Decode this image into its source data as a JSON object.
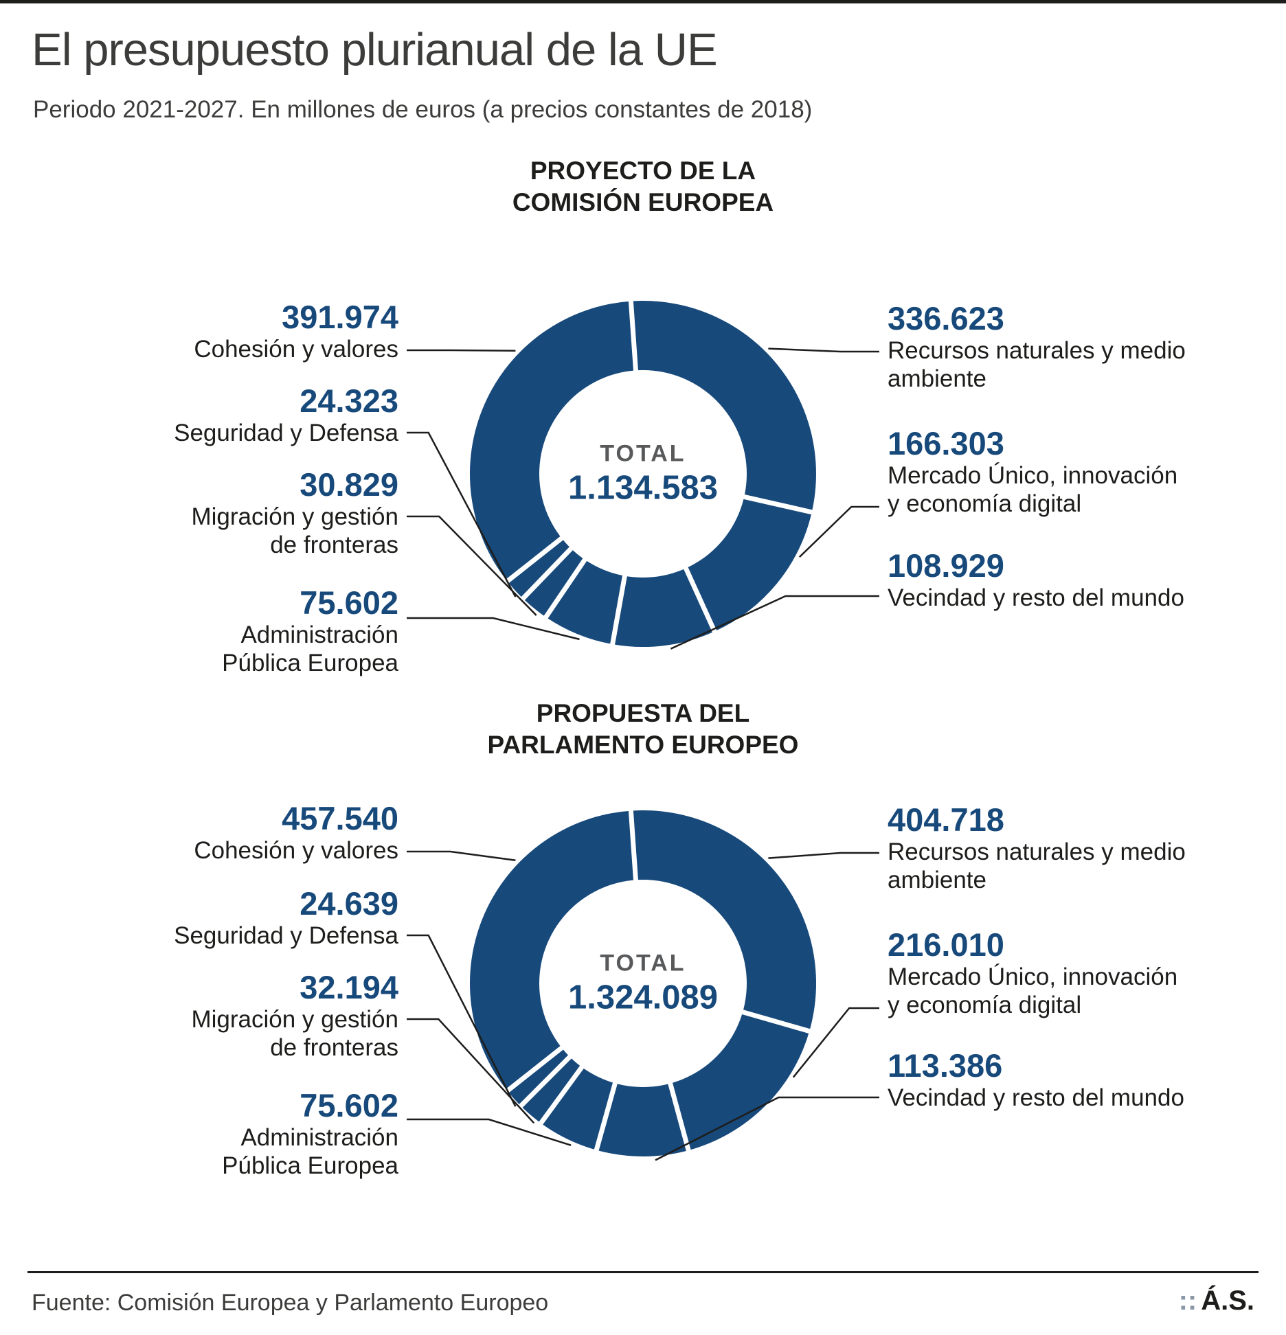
{
  "title": "El presupuesto plurianual de la UE",
  "subtitle": "Periodo 2021-2027. En millones de euros (a precios constantes de 2018)",
  "colors": {
    "donut": "#17497B",
    "value_text": "#17497B",
    "label_text": "#1D1D1B",
    "heading_text": "#3C3C3B",
    "center_label_text": "#58595B",
    "leader_line": "#1D1D1B",
    "brand_dots": "#8A97A5"
  },
  "footer": {
    "source": "Fuente: Comisión Europea y Parlamento Europeo",
    "brand_dots": "::",
    "brand_name": "Á.S."
  },
  "chart_data": [
    {
      "type": "pie",
      "variant": "donut",
      "title_lines": [
        "PROYECTO DE LA",
        "COMISIÓN EUROPEA"
      ],
      "center_label": "TOTAL",
      "total_display": "1.134.583",
      "total_value": 1134583,
      "legend_position": "sides",
      "segments": [
        {
          "id": "recursos",
          "display": "336.623",
          "value": 336623,
          "label_lines": [
            "Recursos naturales y medio",
            "ambiente"
          ]
        },
        {
          "id": "mercado",
          "display": "166.303",
          "value": 166303,
          "label_lines": [
            "Mercado Único, innovación",
            "y economía digital"
          ]
        },
        {
          "id": "vecindad",
          "display": "108.929",
          "value": 108929,
          "label_lines": [
            "Vecindad y resto del mundo"
          ]
        },
        {
          "id": "admin",
          "display": "75.602",
          "value": 75602,
          "label_lines": [
            "Administración",
            "Pública Europea"
          ]
        },
        {
          "id": "migracion",
          "display": "30.829",
          "value": 30829,
          "label_lines": [
            "Migración y gestión",
            "de fronteras"
          ]
        },
        {
          "id": "seguridad",
          "display": "24.323",
          "value": 24323,
          "label_lines": [
            "Seguridad y Defensa"
          ]
        },
        {
          "id": "cohesion",
          "display": "391.974",
          "value": 391974,
          "label_lines": [
            "Cohesión y valores"
          ]
        }
      ]
    },
    {
      "type": "pie",
      "variant": "donut",
      "title_lines": [
        "PROPUESTA DEL",
        "PARLAMENTO EUROPEO"
      ],
      "center_label": "TOTAL",
      "total_display": "1.324.089",
      "total_value": 1324089,
      "legend_position": "sides",
      "segments": [
        {
          "id": "recursos",
          "display": "404.718",
          "value": 404718,
          "label_lines": [
            "Recursos naturales y medio",
            "ambiente"
          ]
        },
        {
          "id": "mercado",
          "display": "216.010",
          "value": 216010,
          "label_lines": [
            "Mercado Único, innovación",
            "y economía digital"
          ]
        },
        {
          "id": "vecindad",
          "display": "113.386",
          "value": 113386,
          "label_lines": [
            "Vecindad y resto del mundo"
          ]
        },
        {
          "id": "admin",
          "display": "75.602",
          "value": 75602,
          "label_lines": [
            "Administración",
            "Pública Europea"
          ]
        },
        {
          "id": "migracion",
          "display": "32.194",
          "value": 32194,
          "label_lines": [
            "Migración y gestión",
            "de fronteras"
          ]
        },
        {
          "id": "seguridad",
          "display": "24.639",
          "value": 24639,
          "label_lines": [
            "Seguridad y Defensa"
          ]
        },
        {
          "id": "cohesion",
          "display": "457.540",
          "value": 457540,
          "label_lines": [
            "Cohesión y valores"
          ]
        }
      ]
    }
  ]
}
